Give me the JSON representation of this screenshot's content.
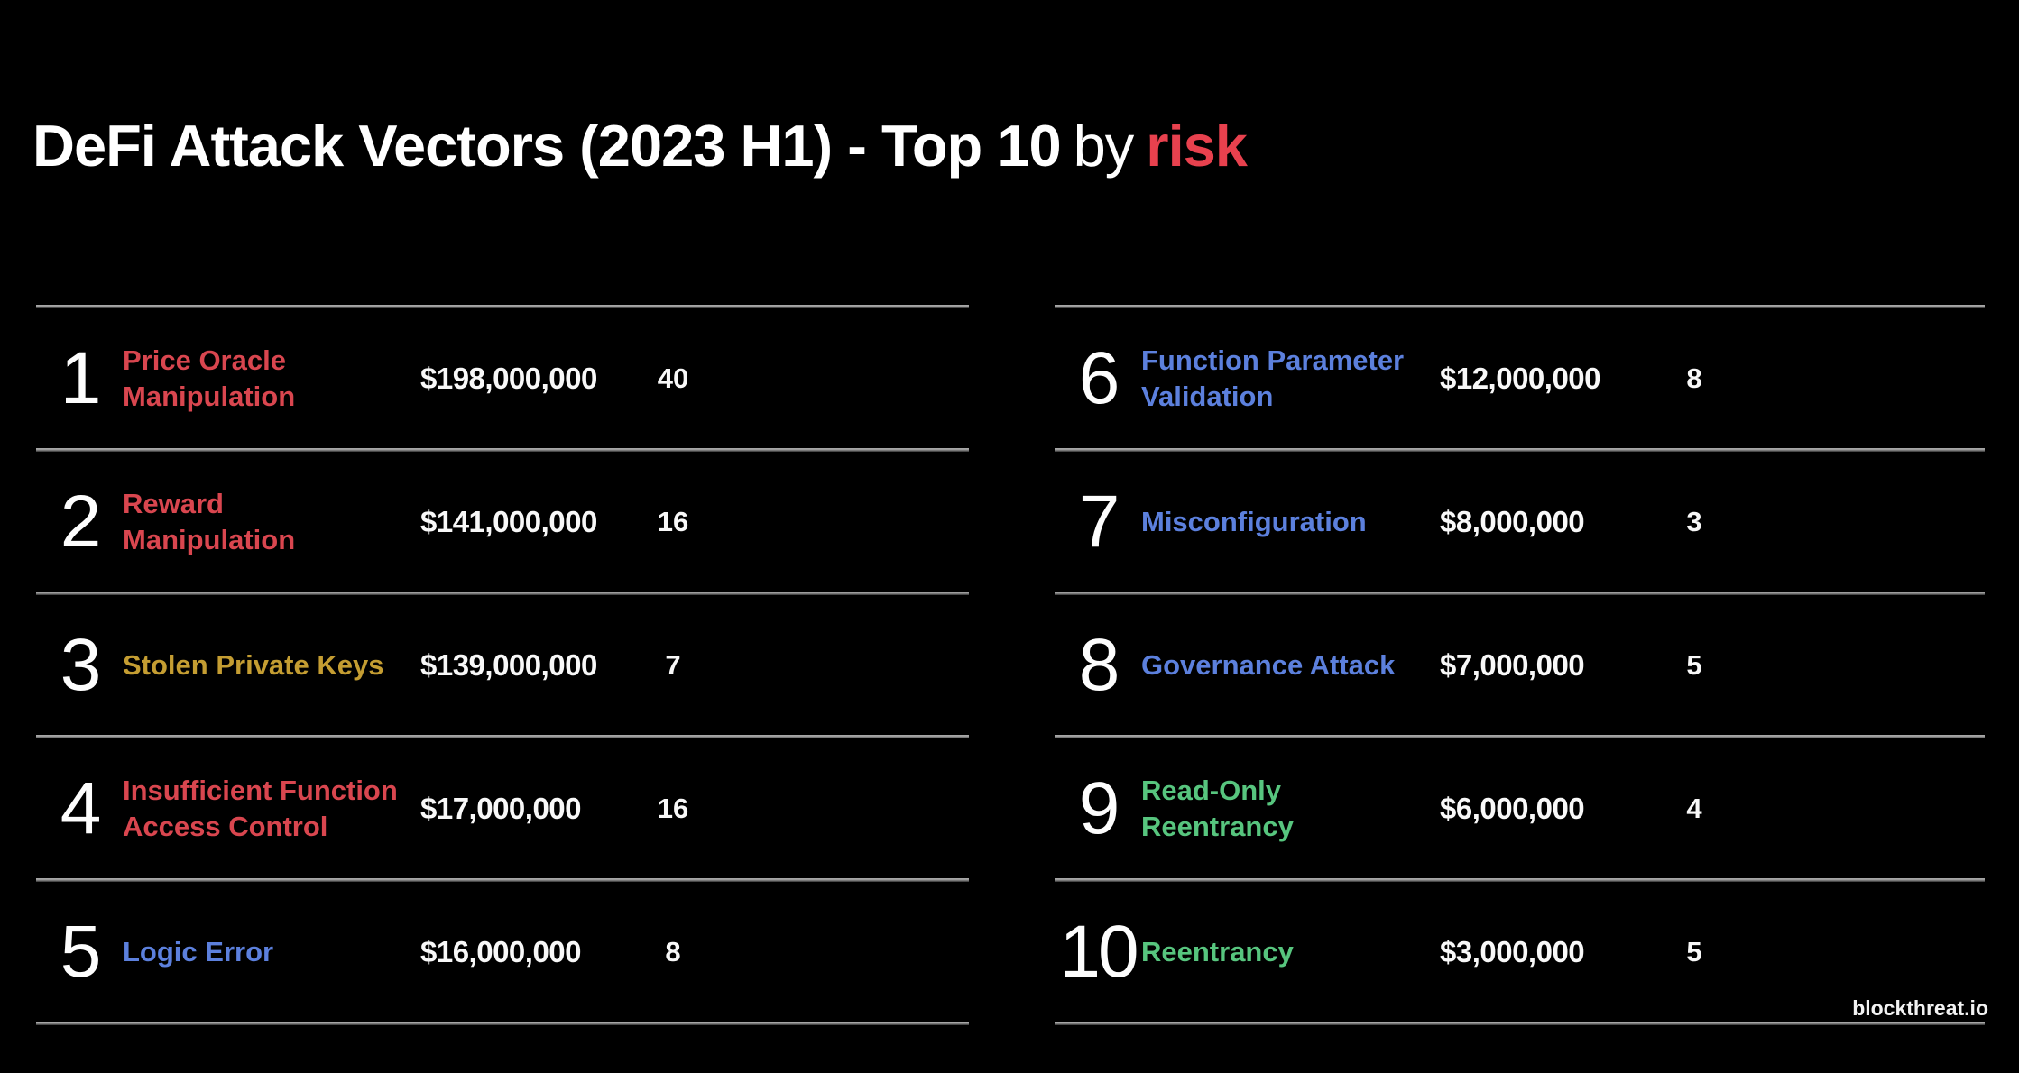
{
  "title": {
    "main": "DeFi Attack Vectors (2023 H1) - Top 10",
    "connector": "by",
    "highlight": "risk",
    "highlight_color": "#e8414e"
  },
  "colors": {
    "background": "#000000",
    "title_text": "#ffffff",
    "risk_red": "#e8414e",
    "severity_red": "#d9464f",
    "severity_gold": "#c49d32",
    "severity_blue": "#5c80dd",
    "severity_green": "#57c57e",
    "divider_gray": "#9a9a9a",
    "value_text": "#f8f8f8"
  },
  "brand": {
    "watermark": "blockthreat.io"
  },
  "chart_data": {
    "type": "table",
    "title": "DeFi Attack Vectors (2023 H1) - Top 10 by risk",
    "layout": {
      "columns_split": [
        5,
        5
      ],
      "grid": "horizontal-row-dividers",
      "legend": "none",
      "color_encodes": "risk severity"
    },
    "rows": [
      {
        "rank": "1",
        "label": "Price Oracle\nManipulation",
        "value": "$198,000,000",
        "value_usd": 198000000,
        "count": "40",
        "color": "#d9464f"
      },
      {
        "rank": "2",
        "label": "Reward\nManipulation",
        "value": "$141,000,000",
        "value_usd": 141000000,
        "count": "16",
        "color": "#d9464f"
      },
      {
        "rank": "3",
        "label": "Stolen Private Keys",
        "value": "$139,000,000",
        "value_usd": 139000000,
        "count": "7",
        "color": "#c49d32"
      },
      {
        "rank": "4",
        "label": "Insufficient Function\nAccess Control",
        "value": "$17,000,000",
        "value_usd": 17000000,
        "count": "16",
        "color": "#d9464f"
      },
      {
        "rank": "5",
        "label": "Logic Error",
        "value": "$16,000,000",
        "value_usd": 16000000,
        "count": "8",
        "color": "#5c80dd"
      },
      {
        "rank": "6",
        "label": "Function Parameter\nValidation",
        "value": "$12,000,000",
        "value_usd": 12000000,
        "count": "8",
        "color": "#5c80dd"
      },
      {
        "rank": "7",
        "label": "Misconfiguration",
        "value": "$8,000,000",
        "value_usd": 8000000,
        "count": "3",
        "color": "#5c80dd"
      },
      {
        "rank": "8",
        "label": "Governance Attack",
        "value": "$7,000,000",
        "value_usd": 7000000,
        "count": "5",
        "color": "#5c80dd"
      },
      {
        "rank": "9",
        "label": "Read-Only\nReentrancy",
        "value": "$6,000,000",
        "value_usd": 6000000,
        "count": "4",
        "color": "#57c57e"
      },
      {
        "rank": "10",
        "label": "Reentrancy",
        "value": "$3,000,000",
        "value_usd": 3000000,
        "count": "5",
        "color": "#57c57e"
      }
    ]
  }
}
